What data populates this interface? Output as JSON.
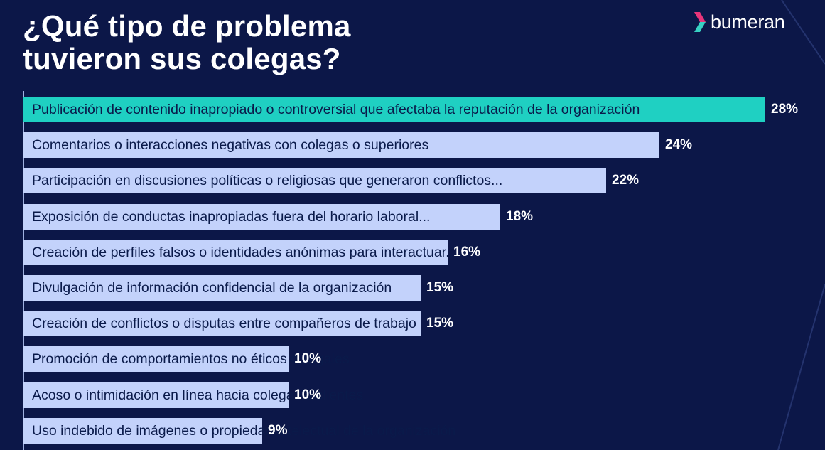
{
  "title_lines": [
    "¿Qué tipo de problema",
    "tuvieron sus colegas?"
  ],
  "logo": {
    "text": "bumeran",
    "icon": "bumeran-chevron-icon",
    "colors": [
      "#e8357a",
      "#38d1c3"
    ]
  },
  "colors": {
    "background": "#0c1748",
    "bar": "#c3d2fb",
    "bar_highlight": "#1fd0c2",
    "label_text": "#0a1a4a",
    "value_text": "#ffffff"
  },
  "chart_data": {
    "type": "bar",
    "orientation": "horizontal",
    "title": "¿Qué tipo de problema tuvieron sus colegas?",
    "xlabel": "",
    "ylabel": "",
    "xlim": [
      0,
      28
    ],
    "grid": false,
    "highlighted_index": 0,
    "categories": [
      "Publicación de contenido inapropiado o controversial que afectaba la reputación de la organización",
      "Comentarios o interacciones negativas con colegas o superiores",
      "Participación en discusiones políticas o religiosas que generaron conflictos...",
      "Exposición de conductas inapropiadas fuera del horario laboral...",
      "Creación de perfiles falsos o identidades anónimas para interactuar...",
      "Divulgación de información confidencial de la organización",
      "Creación de conflictos o disputas entre compañeros de trabajo",
      "Promoción de comportamientos no éticos o ilegales",
      "Acoso o intimidación en línea hacia colegas o clientes",
      "Uso indebido de imágenes o propiedad intelectual de la organización"
    ],
    "values": [
      28,
      24,
      22,
      18,
      16,
      15,
      15,
      10,
      10,
      9
    ],
    "value_labels": [
      "28%",
      "24%",
      "22%",
      "18%",
      "16%",
      "15%",
      "15%",
      "10%",
      "10%",
      "9%"
    ]
  }
}
